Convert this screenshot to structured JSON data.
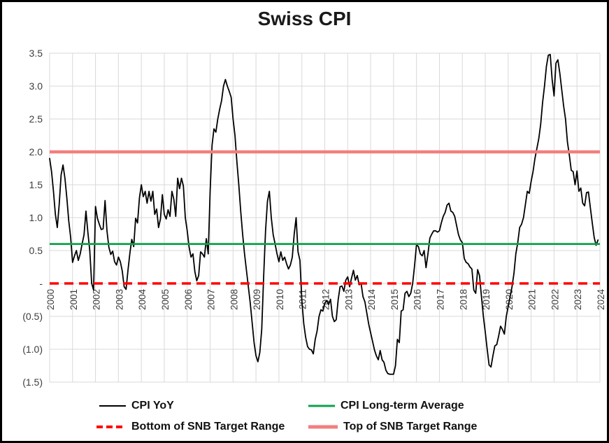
{
  "chart_data": {
    "type": "line",
    "title": "Swiss CPI",
    "xlabel": "",
    "ylabel": "",
    "ylim": [
      -1.5,
      3.5
    ],
    "y_tick_step": 0.5,
    "y_tick_labels": [
      "3.5",
      "3.0",
      "2.5",
      "2.0",
      "1.5",
      "1.0",
      "0.5",
      "-",
      "(0.5)",
      "(1.0)",
      "(1.5)"
    ],
    "x_tick_labels": [
      "2000",
      "2001",
      "2002",
      "2003",
      "2004",
      "2005",
      "2006",
      "2007",
      "2008",
      "2009",
      "2010",
      "2011",
      "2012",
      "2013",
      "2014",
      "2015",
      "2016",
      "2017",
      "2018",
      "2019",
      "2020",
      "2021",
      "2022",
      "2023",
      "2024"
    ],
    "grid": true,
    "legend_position": "bottom",
    "colors": {
      "cpi_line": "#000000",
      "long_term_average": "#0DA24C",
      "bottom_target": "#FF0000",
      "top_target": "#F47E7E",
      "gridline": "#D9D9D9",
      "frame_border": "#000000"
    },
    "series": [
      {
        "name": "CPI YoY",
        "type": "monthly_line",
        "color": "#000000",
        "style": "solid",
        "unit": "percent",
        "values_by_year": {
          "2000": [
            1.9,
            1.7,
            1.4,
            1.05,
            0.85,
            1.2,
            1.65,
            1.8,
            1.6,
            1.3,
            0.95,
            0.7
          ],
          "2001": [
            0.32,
            0.42,
            0.5,
            0.35,
            0.45,
            0.6,
            0.74,
            1.1,
            0.78,
            0.5,
            0.0,
            -0.1
          ],
          "2002": [
            1.17,
            0.99,
            0.9,
            0.82,
            0.83,
            1.26,
            0.8,
            0.55,
            0.44,
            0.49,
            0.33,
            0.28
          ],
          "2003": [
            0.4,
            0.33,
            0.19,
            -0.05,
            -0.09,
            0.2,
            0.46,
            0.67,
            0.56,
            0.99,
            0.92,
            1.3
          ],
          "2004": [
            1.5,
            1.32,
            1.4,
            1.22,
            1.4,
            1.25,
            1.4,
            1.05,
            1.13,
            0.85,
            0.98,
            1.35
          ],
          "2005": [
            1.05,
            0.98,
            1.12,
            1.02,
            1.4,
            1.28,
            1.02,
            1.6,
            1.44,
            1.6,
            1.48,
            1.0
          ],
          "2006": [
            0.8,
            0.55,
            0.4,
            0.45,
            0.18,
            0.04,
            0.12,
            0.48,
            0.45,
            0.4,
            0.68,
            0.45
          ],
          "2007": [
            1.4,
            2.1,
            2.35,
            2.3,
            2.5,
            2.65,
            2.78,
            3.0,
            3.1,
            3.0,
            2.92,
            2.83
          ],
          "2008": [
            2.5,
            2.25,
            1.85,
            1.5,
            1.1,
            0.75,
            0.45,
            0.2,
            -0.05,
            -0.3,
            -0.6,
            -0.9
          ],
          "2009": [
            -1.1,
            -1.19,
            -1.05,
            -0.7,
            0.1,
            0.8,
            1.25,
            1.4,
            1.0,
            0.74,
            0.6,
            0.45
          ],
          "2010": [
            0.33,
            0.48,
            0.35,
            0.4,
            0.3,
            0.22,
            0.28,
            0.4,
            0.75,
            1.0,
            0.48,
            0.35
          ],
          "2011": [
            -0.26,
            -0.61,
            -0.82,
            -0.96,
            -1.0,
            -1.01,
            -1.07,
            -0.85,
            -0.72,
            -0.5,
            -0.4,
            -0.42
          ],
          "2012": [
            -0.3,
            -0.26,
            -0.32,
            -0.24,
            -0.5,
            -0.58,
            -0.55,
            -0.25,
            -0.05,
            -0.04,
            -0.12,
            0.05
          ],
          "2013": [
            0.1,
            -0.05,
            0.08,
            0.2,
            0.05,
            0.12,
            -0.02,
            0.0,
            -0.2,
            -0.28,
            -0.45,
            -0.62
          ],
          "2014": [
            -0.75,
            -0.88,
            -1.01,
            -1.1,
            -1.16,
            -1.02,
            -1.16,
            -1.2,
            -1.32,
            -1.37,
            -1.38,
            -1.38
          ],
          "2015": [
            -1.38,
            -1.25,
            -0.85,
            -0.9,
            -0.42,
            -0.4,
            -0.15,
            -0.12,
            -0.2,
            -0.15,
            0.0,
            0.27
          ],
          "2016": [
            0.59,
            0.56,
            0.45,
            0.42,
            0.5,
            0.24,
            0.45,
            0.69,
            0.75,
            0.8,
            0.8,
            0.78
          ],
          "2017": [
            0.8,
            0.92,
            1.02,
            1.08,
            1.19,
            1.22,
            1.1,
            1.08,
            1.02,
            0.88,
            0.74,
            0.66
          ],
          "2018": [
            0.62,
            0.38,
            0.32,
            0.3,
            0.25,
            0.22,
            -0.1,
            -0.15,
            0.21,
            0.12,
            -0.2,
            -0.5
          ],
          "2019": [
            -0.74,
            -1.0,
            -1.24,
            -1.27,
            -1.1,
            -0.95,
            -0.93,
            -0.8,
            -0.65,
            -0.7,
            -0.77,
            -0.5
          ],
          "2020": [
            -0.35,
            -0.2,
            -0.05,
            0.15,
            0.45,
            0.62,
            0.85,
            0.9,
            1.0,
            1.2,
            1.4,
            1.37
          ],
          "2021": [
            1.55,
            1.7,
            1.9,
            2.05,
            2.2,
            2.42,
            2.75,
            3.0,
            3.3,
            3.47,
            3.48,
            3.1
          ],
          "2022": [
            2.85,
            3.35,
            3.4,
            3.2,
            2.95,
            2.7,
            2.5,
            2.15,
            1.95,
            1.72,
            1.7,
            1.5
          ],
          "2023": [
            1.71,
            1.4,
            1.45,
            1.22,
            1.18,
            1.38,
            1.39,
            1.15,
            0.92,
            0.7,
            0.58,
            0.66
          ]
        }
      },
      {
        "name": "CPI Long-term Average",
        "type": "reference_line",
        "color": "#0DA24C",
        "style": "solid",
        "value": 0.6
      },
      {
        "name": "Bottom of SNB Target Range",
        "type": "reference_line",
        "color": "#FF0000",
        "style": "dashed",
        "value": 0.0
      },
      {
        "name": "Top of SNB Target Range",
        "type": "reference_line",
        "color": "#F47E7E",
        "style": "solid",
        "value": 2.0
      }
    ]
  }
}
